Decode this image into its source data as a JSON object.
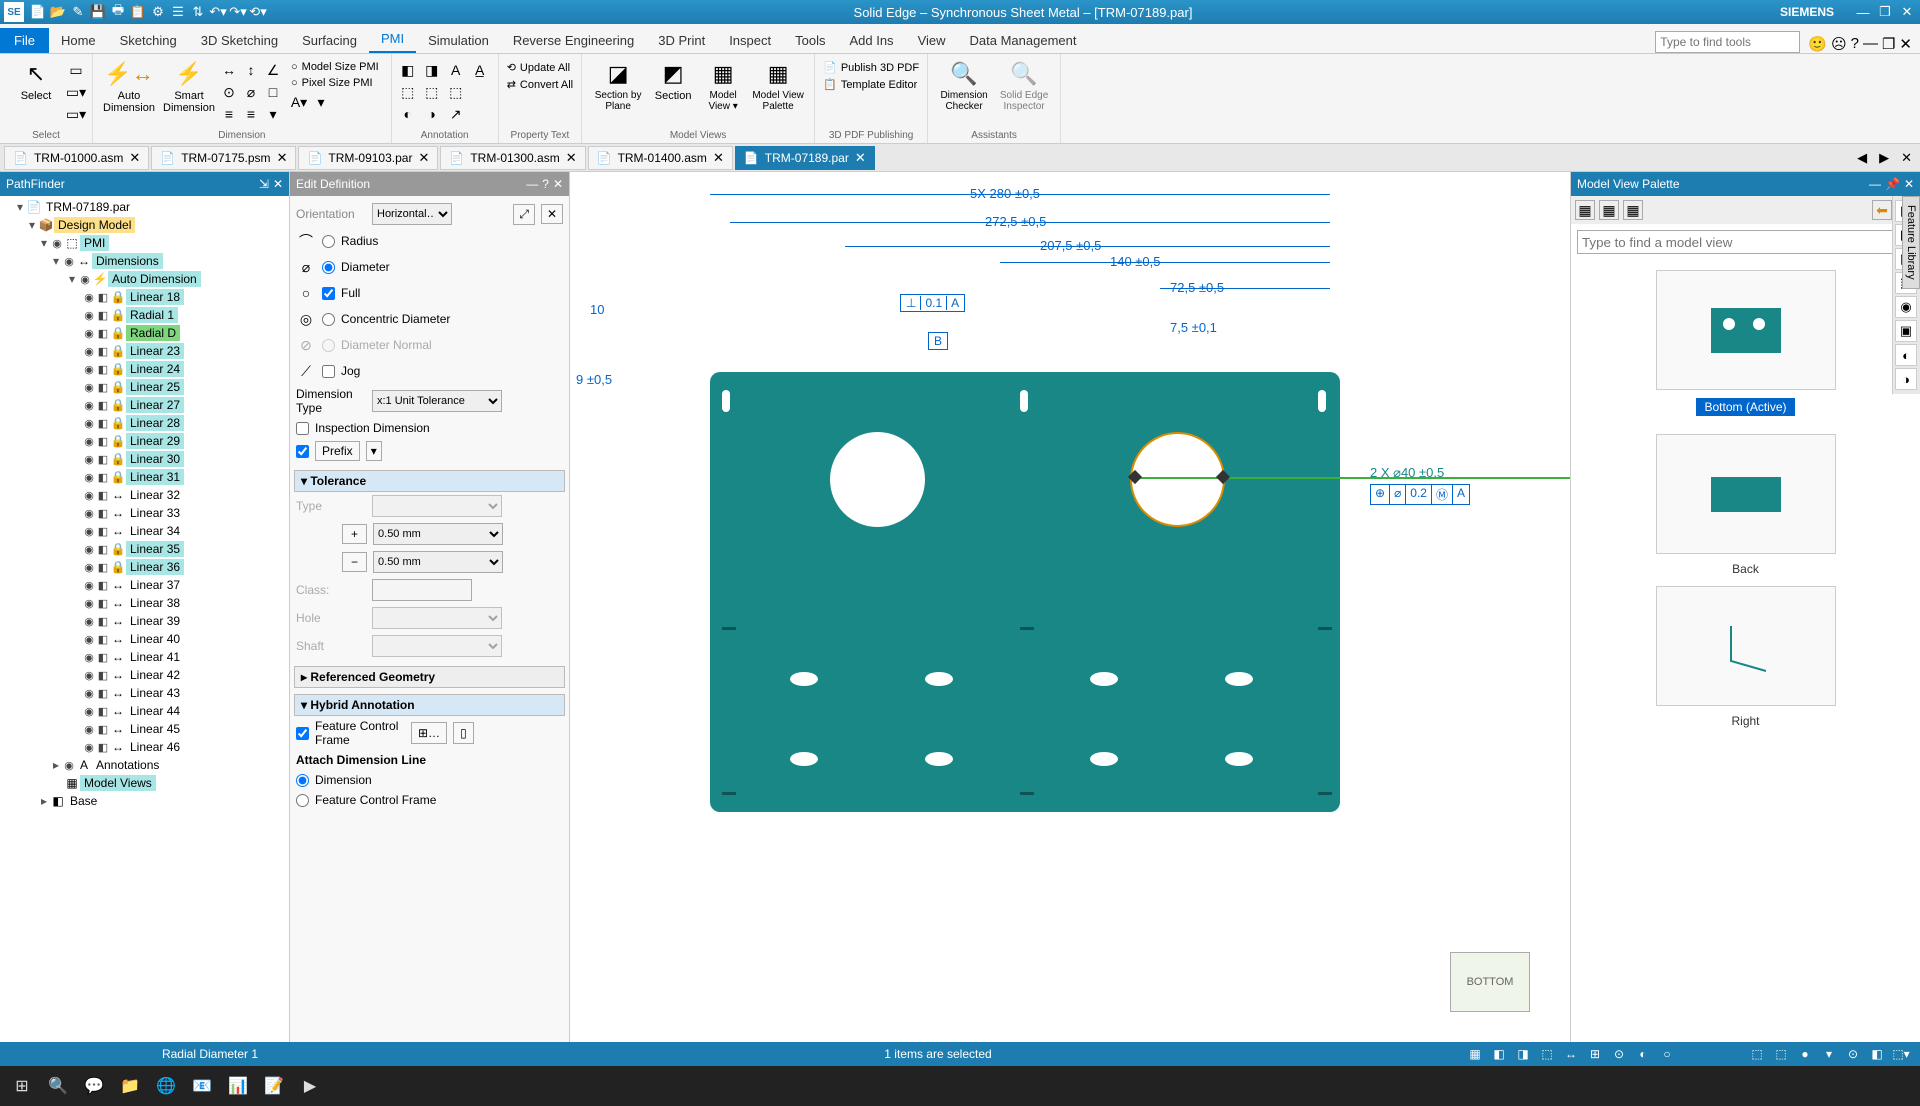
{
  "titlebar": {
    "app_abbrev": "SE",
    "title": "Solid Edge – Synchronous Sheet Metal – [TRM-07189.par]",
    "brand": "SIEMENS"
  },
  "menubar": {
    "file": "File",
    "tabs": [
      "Home",
      "Sketching",
      "3D Sketching",
      "Surfacing",
      "PMI",
      "Simulation",
      "Reverse Engineering",
      "3D Print",
      "Inspect",
      "Tools",
      "Add Ins",
      "View",
      "Data Management"
    ],
    "active_tab": "PMI",
    "search_placeholder": "Type to find tools"
  },
  "ribbon": {
    "select": {
      "label": "Select",
      "btn": "Select"
    },
    "dimension": {
      "label": "Dimension",
      "auto": "Auto\nDimension",
      "smart": "Smart\nDimension"
    },
    "model_size_pmi": "Model Size PMI",
    "pixel_size_pmi": "Pixel Size PMI",
    "annotation": {
      "label": "Annotation"
    },
    "update_all": "Update All",
    "convert_all": "Convert All",
    "property_text": {
      "label": "Property Text"
    },
    "model_views": {
      "label": "Model Views",
      "sbp": "Section by Plane",
      "section": "Section",
      "mv": "Model View ▾",
      "mvp": "Model View Palette"
    },
    "pdf": {
      "label": "3D PDF Publishing",
      "publish": "Publish 3D PDF",
      "template": "Template Editor"
    },
    "assistants": {
      "label": "Assistants",
      "dc": "Dimension Checker",
      "sei": "Solid Edge Inspector"
    }
  },
  "doc_tabs": [
    "TRM-01000.asm",
    "TRM-07175.psm",
    "TRM-09103.par",
    "TRM-01300.asm",
    "TRM-01400.asm",
    "TRM-07189.par"
  ],
  "doc_active": 5,
  "pathfinder": {
    "title": "PathFinder",
    "root": "TRM-07189.par",
    "design_model": "Design Model",
    "pmi": "PMI",
    "dimensions": "Dimensions",
    "auto_dim": "Auto Dimension",
    "items": [
      "Linear 18",
      "Radial 1",
      "Radial D",
      "Linear 23",
      "Linear 24",
      "Linear 25",
      "Linear 27",
      "Linear 28",
      "Linear 29",
      "Linear 30",
      "Linear 31",
      "Linear 32",
      "Linear 33",
      "Linear 34",
      "Linear 35",
      "Linear 36",
      "Linear 37",
      "Linear 38",
      "Linear 39",
      "Linear 40",
      "Linear 41",
      "Linear 42",
      "Linear 43",
      "Linear 44",
      "Linear 45",
      "Linear 46"
    ],
    "locked_indices": [
      0,
      1,
      2,
      3,
      4,
      5,
      6,
      7,
      8,
      9,
      10,
      14,
      15
    ],
    "annotations": "Annotations",
    "model_views": "Model Views",
    "base": "Base"
  },
  "editdef": {
    "title": "Edit Definition",
    "orientation_lbl": "Orientation",
    "orientation_val": "Horizontal…",
    "radius": "Radius",
    "diameter": "Diameter",
    "full": "Full",
    "concentric": "Concentric Diameter",
    "dia_normal": "Diameter Normal",
    "jog": "Jog",
    "dim_type_lbl": "Dimension Type",
    "dim_type_val": "x:1  Unit Tolerance",
    "inspection": "Inspection Dimension",
    "prefix": "Prefix",
    "tolerance_hdr": "Tolerance",
    "type_lbl": "Type",
    "plus": "+",
    "plus_val": "0.50 mm",
    "minus": "−",
    "minus_val": "0.50 mm",
    "class_lbl": "Class:",
    "hole_lbl": "Hole",
    "shaft_lbl": "Shaft",
    "ref_geom": "Referenced Geometry",
    "hybrid": "Hybrid Annotation",
    "fcf": "Feature Control Frame",
    "attach_dim": "Attach Dimension Line",
    "dimension": "Dimension",
    "fcf2": "Feature Control Frame"
  },
  "canvas": {
    "dims": {
      "d1": "5X  280  ±0,5",
      "d2": "272,5  ±0,5",
      "d3": "207,5  ±0,5",
      "d4": "140  ±0,5",
      "d5": "72,5  ±0,5",
      "d6": "7,5  ±0,1",
      "d7": "10",
      "d8": "9  ±0,5",
      "d9": "2 X  ⌀40  ±0,5"
    },
    "datum_perp": "⊥",
    "datum_tol": "0.1",
    "datum_a": "A",
    "datum_b": "B",
    "fcf_sym": "⊕",
    "fcf_dia": "⌀",
    "fcf_val": "0.2",
    "fcf_m": "Ⓜ",
    "fcf_a": "A",
    "part_color": "#1a8787",
    "orient": "BOTTOM"
  },
  "mvp": {
    "title": "Model View Palette",
    "search_placeholder": "Type to find a model view",
    "views": [
      "Bottom (Active)",
      "Back",
      "Right"
    ]
  },
  "statusbar": {
    "left": "Radial Diameter 1",
    "mid": "1 items are selected"
  }
}
